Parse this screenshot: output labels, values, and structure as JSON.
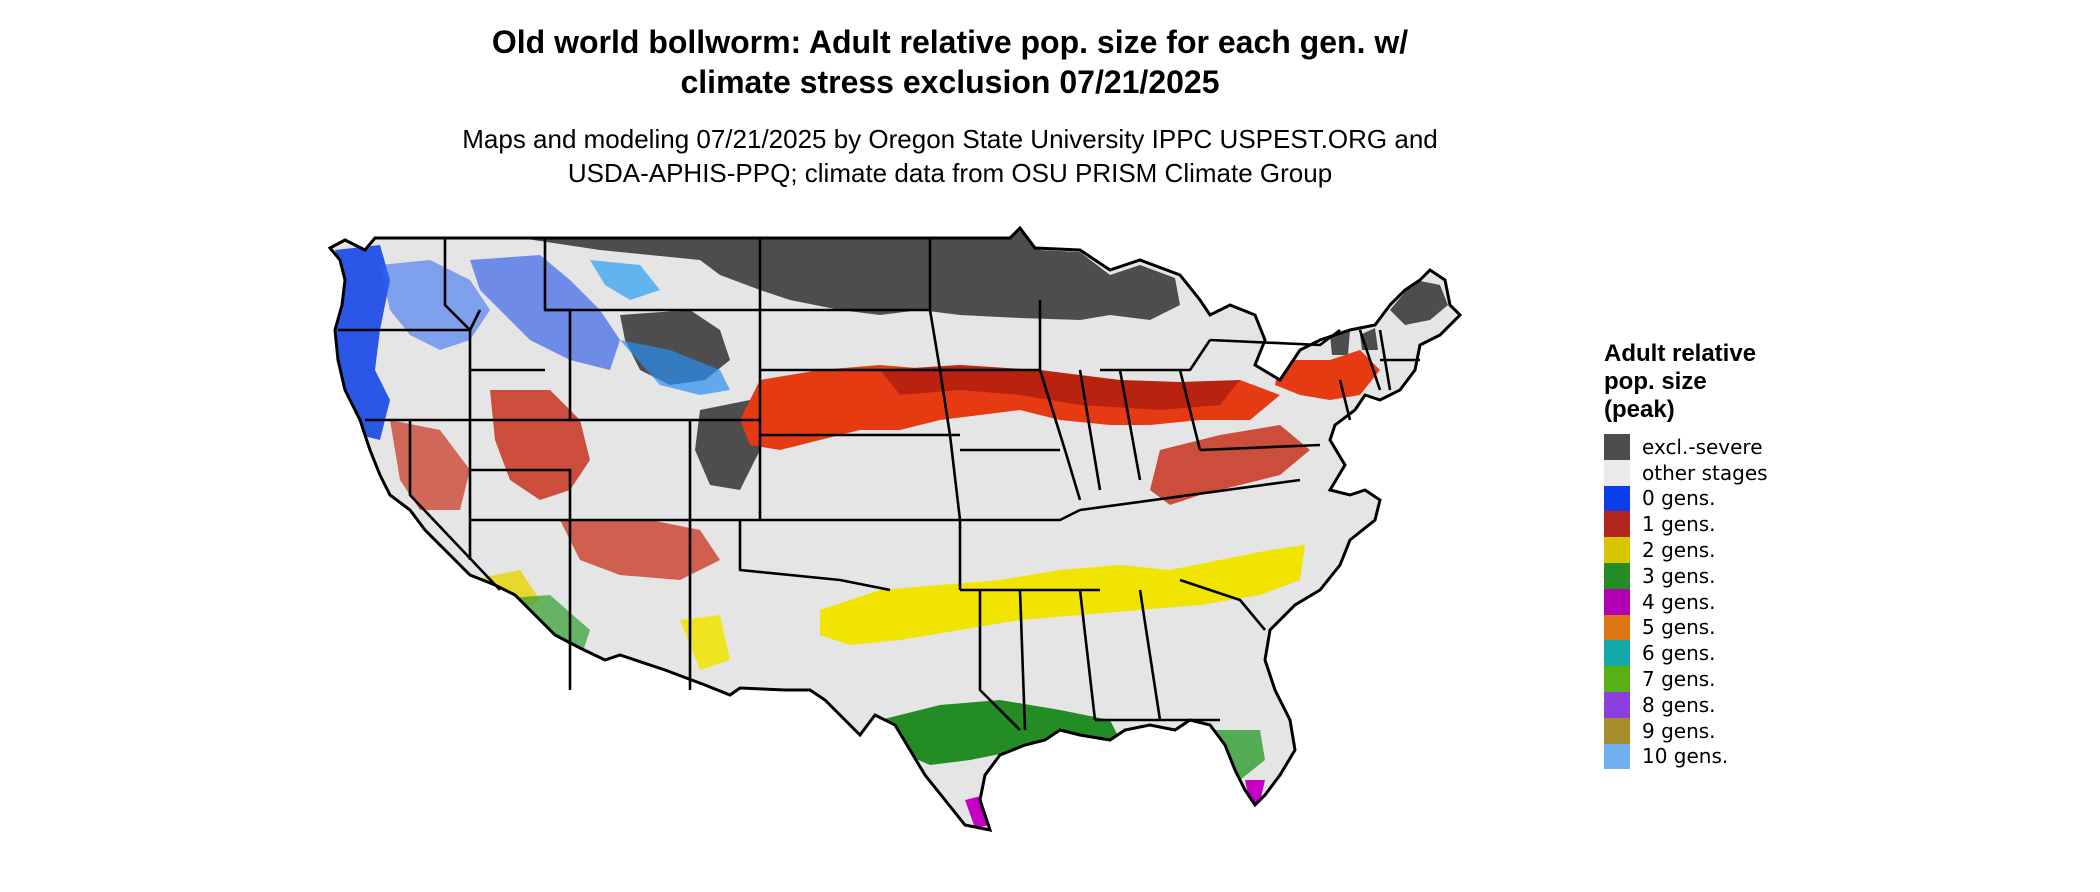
{
  "title": {
    "line1": "Old world bollworm: Adult relative pop. size for each gen. w/",
    "line2": "climate stress exclusion 07/21/2025"
  },
  "subtitle": {
    "line1": "Maps and modeling 07/21/2025 by Oregon State University IPPC USPEST.ORG and",
    "line2": "USDA-APHIS-PPQ; climate data from OSU PRISM Climate Group"
  },
  "colors": {
    "excl": "#4d4d4d",
    "other": "#e5e5e5",
    "gen0": "#0a3ee8",
    "gen1": "#c8321e",
    "gen2": "#f0e400",
    "gen3": "#248c24",
    "gen4": "#c400c4",
    "border": "#000000"
  },
  "legend": {
    "title_line1": "Adult relative",
    "title_line2": "pop. size",
    "title_line3": "(peak)",
    "items": [
      {
        "label": "excl.-severe",
        "color": "#4d4d4d"
      },
      {
        "label": "other stages",
        "color": "#ebebeb"
      },
      {
        "label": "0 gens.",
        "color": "#0a3ee8"
      },
      {
        "label": "1 gens.",
        "color": "#b3261e"
      },
      {
        "label": "2 gens.",
        "color": "#d8c600"
      },
      {
        "label": "3 gens.",
        "color": "#248c24"
      },
      {
        "label": "4 gens.",
        "color": "#b400b4"
      },
      {
        "label": "5 gens.",
        "color": "#df7512"
      },
      {
        "label": "6 gens.",
        "color": "#14a8a8"
      },
      {
        "label": "7 gens.",
        "color": "#58b014"
      },
      {
        "label": "8 gens.",
        "color": "#8c3ee0"
      },
      {
        "label": "9 gens.",
        "color": "#a68c2a"
      },
      {
        "label": "10 gens.",
        "color": "#70b0f0"
      }
    ]
  }
}
